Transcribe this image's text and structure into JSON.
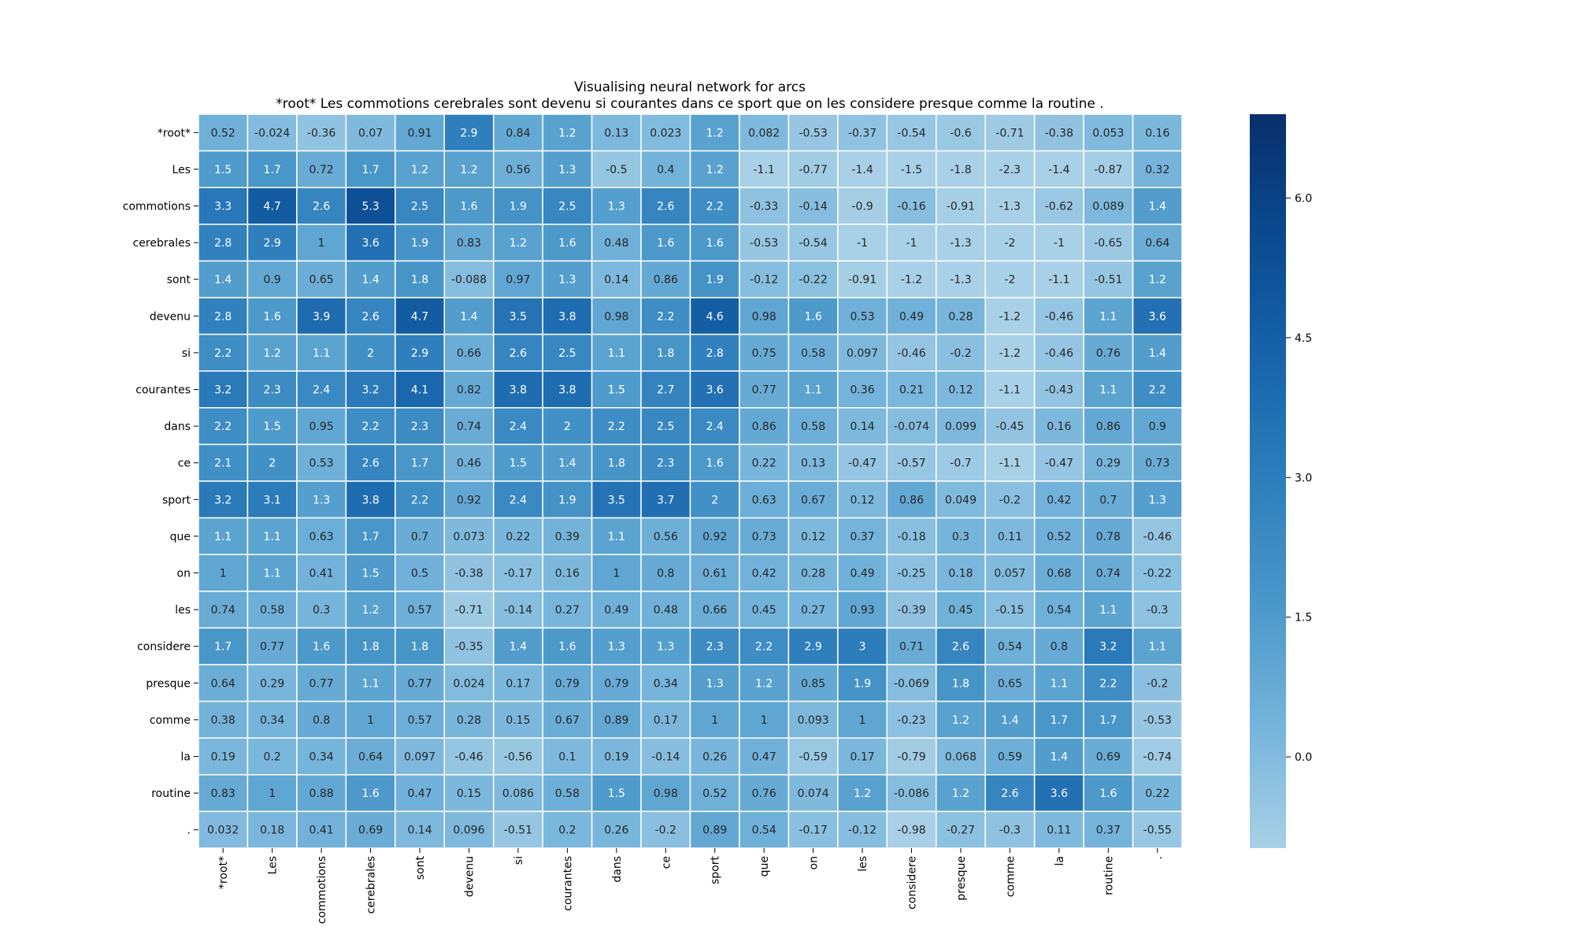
{
  "chart_data": {
    "type": "heatmap",
    "title": "Visualising neural network for arcs",
    "subtitle": "*root* Les commotions cerebrales sont devenu si courantes dans ce sport que on les considere presque comme la routine .",
    "x_labels": [
      "*root*",
      "Les",
      "commotions",
      "cerebrales",
      "sont",
      "devenu",
      "si",
      "courantes",
      "dans",
      "ce",
      "sport",
      "que",
      "on",
      "les",
      "considere",
      "presque",
      "comme",
      "la",
      "routine",
      "."
    ],
    "y_labels": [
      "*root*",
      "Les",
      "commotions",
      "cerebrales",
      "sont",
      "devenu",
      "si",
      "courantes",
      "dans",
      "ce",
      "sport",
      "que",
      "on",
      "les",
      "considere",
      "presque",
      "comme",
      "la",
      "routine",
      "."
    ],
    "values": [
      [
        "0.52",
        "-0.024",
        "-0.36",
        "0.07",
        "0.91",
        "2.9",
        "0.84",
        "1.2",
        "0.13",
        "0.023",
        "1.2",
        "0.082",
        "-0.53",
        "-0.37",
        "-0.54",
        "-0.6",
        "-0.71",
        "-0.38",
        "0.053",
        "0.16"
      ],
      [
        "1.5",
        "1.7",
        "0.72",
        "1.7",
        "1.2",
        "1.2",
        "0.56",
        "1.3",
        "-0.5",
        "0.4",
        "1.2",
        "-1.1",
        "-0.77",
        "-1.4",
        "-1.5",
        "-1.8",
        "-2.3",
        "-1.4",
        "-0.87",
        "0.32"
      ],
      [
        "3.3",
        "4.7",
        "2.6",
        "5.3",
        "2.5",
        "1.6",
        "1.9",
        "2.5",
        "1.3",
        "2.6",
        "2.2",
        "-0.33",
        "-0.14",
        "-0.9",
        "-0.16",
        "-0.91",
        "-1.3",
        "-0.62",
        "0.089",
        "1.4"
      ],
      [
        "2.8",
        "2.9",
        "1",
        "3.6",
        "1.9",
        "0.83",
        "1.2",
        "1.6",
        "0.48",
        "1.6",
        "1.6",
        "-0.53",
        "-0.54",
        "-1",
        "-1",
        "-1.3",
        "-2",
        "-1",
        "-0.65",
        "0.64"
      ],
      [
        "1.4",
        "0.9",
        "0.65",
        "1.4",
        "1.8",
        "-0.088",
        "0.97",
        "1.3",
        "0.14",
        "0.86",
        "1.9",
        "-0.12",
        "-0.22",
        "-0.91",
        "-1.2",
        "-1.3",
        "-2",
        "-1.1",
        "-0.51",
        "1.2"
      ],
      [
        "2.8",
        "1.6",
        "3.9",
        "2.6",
        "4.7",
        "1.4",
        "3.5",
        "3.8",
        "0.98",
        "2.2",
        "4.6",
        "0.98",
        "1.6",
        "0.53",
        "0.49",
        "0.28",
        "-1.2",
        "-0.46",
        "1.1",
        "3.6"
      ],
      [
        "2.2",
        "1.2",
        "1.1",
        "2",
        "2.9",
        "0.66",
        "2.6",
        "2.5",
        "1.1",
        "1.8",
        "2.8",
        "0.75",
        "0.58",
        "0.097",
        "-0.46",
        "-0.2",
        "-1.2",
        "-0.46",
        "0.76",
        "1.4"
      ],
      [
        "3.2",
        "2.3",
        "2.4",
        "3.2",
        "4.1",
        "0.82",
        "3.8",
        "3.8",
        "1.5",
        "2.7",
        "3.6",
        "0.77",
        "1.1",
        "0.36",
        "0.21",
        "0.12",
        "-1.1",
        "-0.43",
        "1.1",
        "2.2"
      ],
      [
        "2.2",
        "1.5",
        "0.95",
        "2.2",
        "2.3",
        "0.74",
        "2.4",
        "2",
        "2.2",
        "2.5",
        "2.4",
        "0.86",
        "0.58",
        "0.14",
        "-0.074",
        "0.099",
        "-0.45",
        "0.16",
        "0.86",
        "0.9"
      ],
      [
        "2.1",
        "2",
        "0.53",
        "2.6",
        "1.7",
        "0.46",
        "1.5",
        "1.4",
        "1.8",
        "2.3",
        "1.6",
        "0.22",
        "0.13",
        "-0.47",
        "-0.57",
        "-0.7",
        "-1.1",
        "-0.47",
        "0.29",
        "0.73"
      ],
      [
        "3.2",
        "3.1",
        "1.3",
        "3.8",
        "2.2",
        "0.92",
        "2.4",
        "1.9",
        "3.5",
        "3.7",
        "2",
        "0.63",
        "0.67",
        "0.12",
        "0.86",
        "0.049",
        "-0.2",
        "0.42",
        "0.7",
        "1.3"
      ],
      [
        "1.1",
        "1.1",
        "0.63",
        "1.7",
        "0.7",
        "0.073",
        "0.22",
        "0.39",
        "1.1",
        "0.56",
        "0.92",
        "0.73",
        "0.12",
        "0.37",
        "-0.18",
        "0.3",
        "0.11",
        "0.52",
        "0.78",
        "-0.46"
      ],
      [
        "1",
        "1.1",
        "0.41",
        "1.5",
        "0.5",
        "-0.38",
        "-0.17",
        "0.16",
        "1",
        "0.8",
        "0.61",
        "0.42",
        "0.28",
        "0.49",
        "-0.25",
        "0.18",
        "0.057",
        "0.68",
        "0.74",
        "-0.22"
      ],
      [
        "0.74",
        "0.58",
        "0.3",
        "1.2",
        "0.57",
        "-0.71",
        "-0.14",
        "0.27",
        "0.49",
        "0.48",
        "0.66",
        "0.45",
        "0.27",
        "0.93",
        "-0.39",
        "0.45",
        "-0.15",
        "0.54",
        "1.1",
        "-0.3"
      ],
      [
        "1.7",
        "0.77",
        "1.6",
        "1.8",
        "1.8",
        "-0.35",
        "1.4",
        "1.6",
        "1.3",
        "1.3",
        "2.3",
        "2.2",
        "2.9",
        "3",
        "0.71",
        "2.6",
        "0.54",
        "0.8",
        "3.2",
        "1.1"
      ],
      [
        "0.64",
        "0.29",
        "0.77",
        "1.1",
        "0.77",
        "0.024",
        "0.17",
        "0.79",
        "0.79",
        "0.34",
        "1.3",
        "1.2",
        "0.85",
        "1.9",
        "-0.069",
        "1.8",
        "0.65",
        "1.1",
        "2.2",
        "-0.2"
      ],
      [
        "0.38",
        "0.34",
        "0.8",
        "1",
        "0.57",
        "0.28",
        "0.15",
        "0.67",
        "0.89",
        "0.17",
        "1",
        "1",
        "0.093",
        "1",
        "-0.23",
        "1.2",
        "1.4",
        "1.7",
        "1.7",
        "-0.53"
      ],
      [
        "0.19",
        "0.2",
        "0.34",
        "0.64",
        "0.097",
        "-0.46",
        "-0.56",
        "0.1",
        "0.19",
        "-0.14",
        "0.26",
        "0.47",
        "-0.59",
        "0.17",
        "-0.79",
        "0.068",
        "0.59",
        "1.4",
        "0.69",
        "-0.74"
      ],
      [
        "0.83",
        "1",
        "0.88",
        "1.6",
        "0.47",
        "0.15",
        "0.086",
        "0.58",
        "1.5",
        "0.98",
        "0.52",
        "0.76",
        "0.074",
        "1.2",
        "-0.086",
        "1.2",
        "2.6",
        "3.6",
        "1.6",
        "0.22"
      ],
      [
        "0.032",
        "0.18",
        "0.41",
        "0.69",
        "0.14",
        "0.096",
        "-0.51",
        "0.2",
        "0.26",
        "-0.2",
        "0.89",
        "0.54",
        "-0.17",
        "-0.12",
        "-0.98",
        "-0.27",
        "-0.3",
        "0.11",
        "0.37",
        "-0.55"
      ]
    ],
    "colorbar": {
      "vmin": -0.98,
      "vmax": 6.9,
      "ticks": [
        0.0,
        1.5,
        3.0,
        4.5,
        6.0
      ],
      "tick_labels": [
        "0.0",
        "1.5",
        "3.0",
        "4.5",
        "6.0"
      ]
    },
    "colormap": [
      "#a8d0e6",
      "#75b4db",
      "#4a98c9",
      "#2e7ebc",
      "#1764ab",
      "#0a4a90",
      "#08306b"
    ],
    "annotation_colors": {
      "dark_text": "#262626",
      "light_text": "#ffffff"
    },
    "cell_border_color": "#ffffff"
  }
}
